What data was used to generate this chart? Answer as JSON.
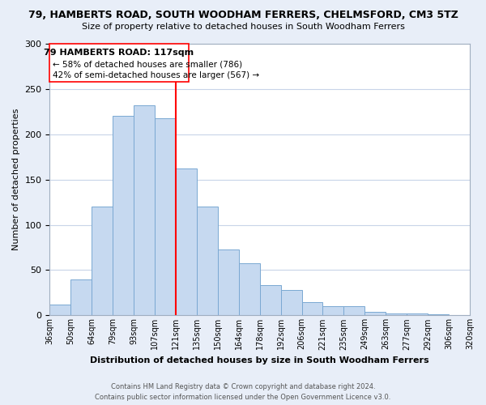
{
  "title1": "79, HAMBERTS ROAD, SOUTH WOODHAM FERRERS, CHELMSFORD, CM3 5TZ",
  "title2": "Size of property relative to detached houses in South Woodham Ferrers",
  "xlabel": "Distribution of detached houses by size in South Woodham Ferrers",
  "ylabel": "Number of detached properties",
  "footer1": "Contains HM Land Registry data © Crown copyright and database right 2024.",
  "footer2": "Contains public sector information licensed under the Open Government Licence v3.0.",
  "bin_labels": [
    "36sqm",
    "50sqm",
    "64sqm",
    "79sqm",
    "93sqm",
    "107sqm",
    "121sqm",
    "135sqm",
    "150sqm",
    "164sqm",
    "178sqm",
    "192sqm",
    "206sqm",
    "221sqm",
    "235sqm",
    "249sqm",
    "263sqm",
    "277sqm",
    "292sqm",
    "306sqm",
    "320sqm"
  ],
  "bar_heights": [
    12,
    40,
    120,
    220,
    232,
    218,
    162,
    120,
    73,
    58,
    33,
    28,
    15,
    10,
    10,
    4,
    2,
    2,
    1,
    0
  ],
  "bar_color": "#c6d9f0",
  "bar_edge_color": "#7aa8d2",
  "vline_x": 6,
  "vline_color": "red",
  "vline_label": "79 HAMBERTS ROAD: 117sqm",
  "annotation_smaller": "← 58% of detached houses are smaller (786)",
  "annotation_larger": "42% of semi-detached houses are larger (567) →",
  "ylim": [
    0,
    300
  ],
  "yticks": [
    0,
    50,
    100,
    150,
    200,
    250,
    300
  ],
  "background_color": "#e8eef8",
  "plot_bg_color": "#ffffff",
  "grid_color": "#c8d4e8"
}
